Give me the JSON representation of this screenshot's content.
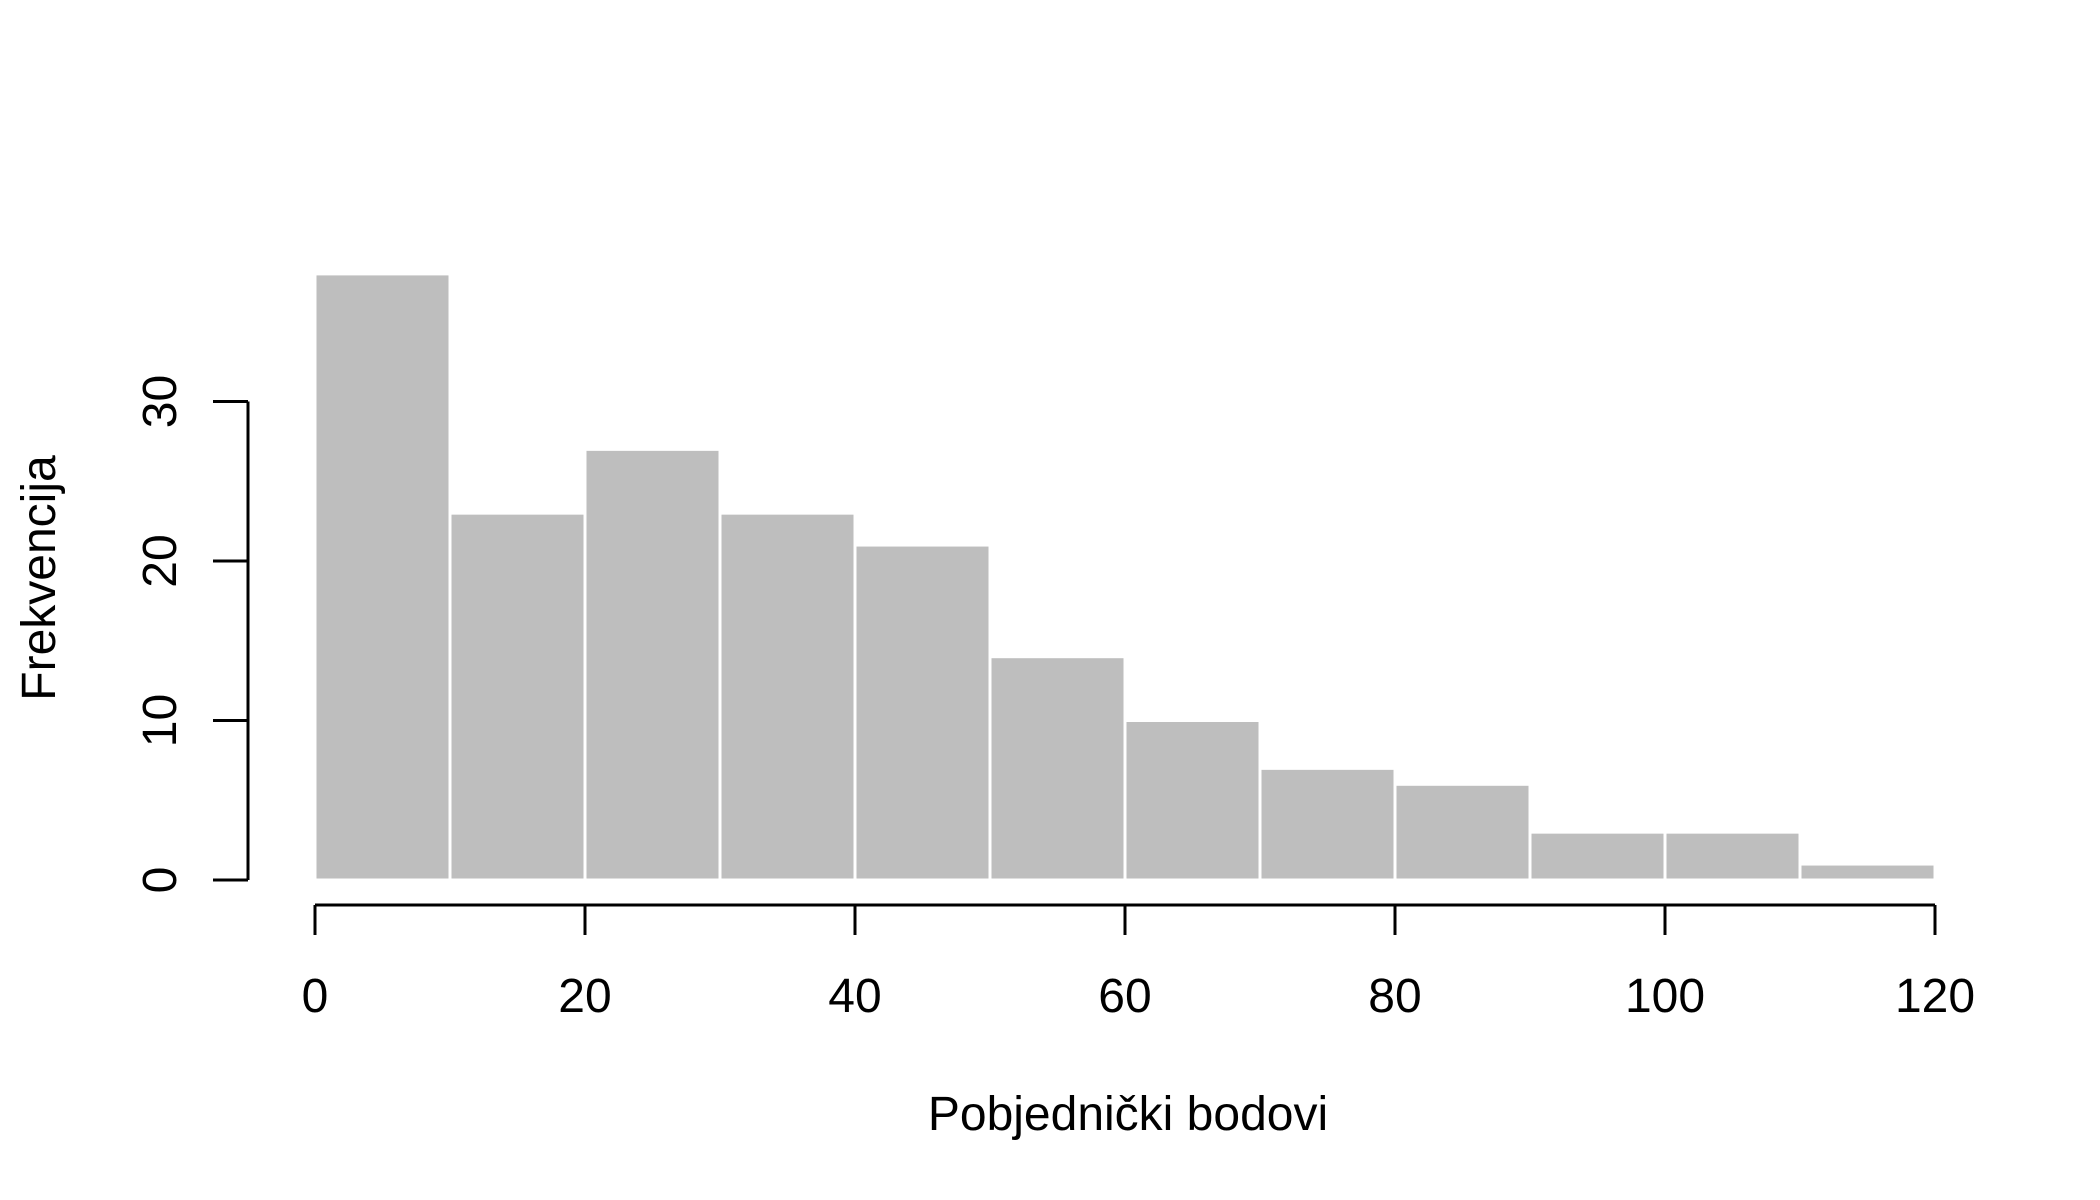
{
  "chart_data": {
    "type": "bar",
    "subtype": "histogram",
    "bins": [
      {
        "from": 0,
        "to": 10,
        "count": 38
      },
      {
        "from": 10,
        "to": 20,
        "count": 23
      },
      {
        "from": 20,
        "to": 30,
        "count": 27
      },
      {
        "from": 30,
        "to": 40,
        "count": 23
      },
      {
        "from": 40,
        "to": 50,
        "count": 21
      },
      {
        "from": 50,
        "to": 60,
        "count": 14
      },
      {
        "from": 60,
        "to": 70,
        "count": 10
      },
      {
        "from": 70,
        "to": 80,
        "count": 7
      },
      {
        "from": 80,
        "to": 90,
        "count": 6
      },
      {
        "from": 90,
        "to": 100,
        "count": 3
      },
      {
        "from": 100,
        "to": 110,
        "count": 3
      },
      {
        "from": 110,
        "to": 120,
        "count": 1
      }
    ],
    "xlabel": "Pobjednički bodovi",
    "ylabel": "Frekvencija",
    "xlim": [
      0,
      120
    ],
    "ylim": [
      0,
      38
    ],
    "xticks": [
      0,
      20,
      40,
      60,
      80,
      100,
      120
    ],
    "yticks": [
      0,
      10,
      20,
      30
    ],
    "bar_color": "#bebebe",
    "bar_border_color": "#ffffff",
    "grid": false,
    "legend": "none"
  }
}
